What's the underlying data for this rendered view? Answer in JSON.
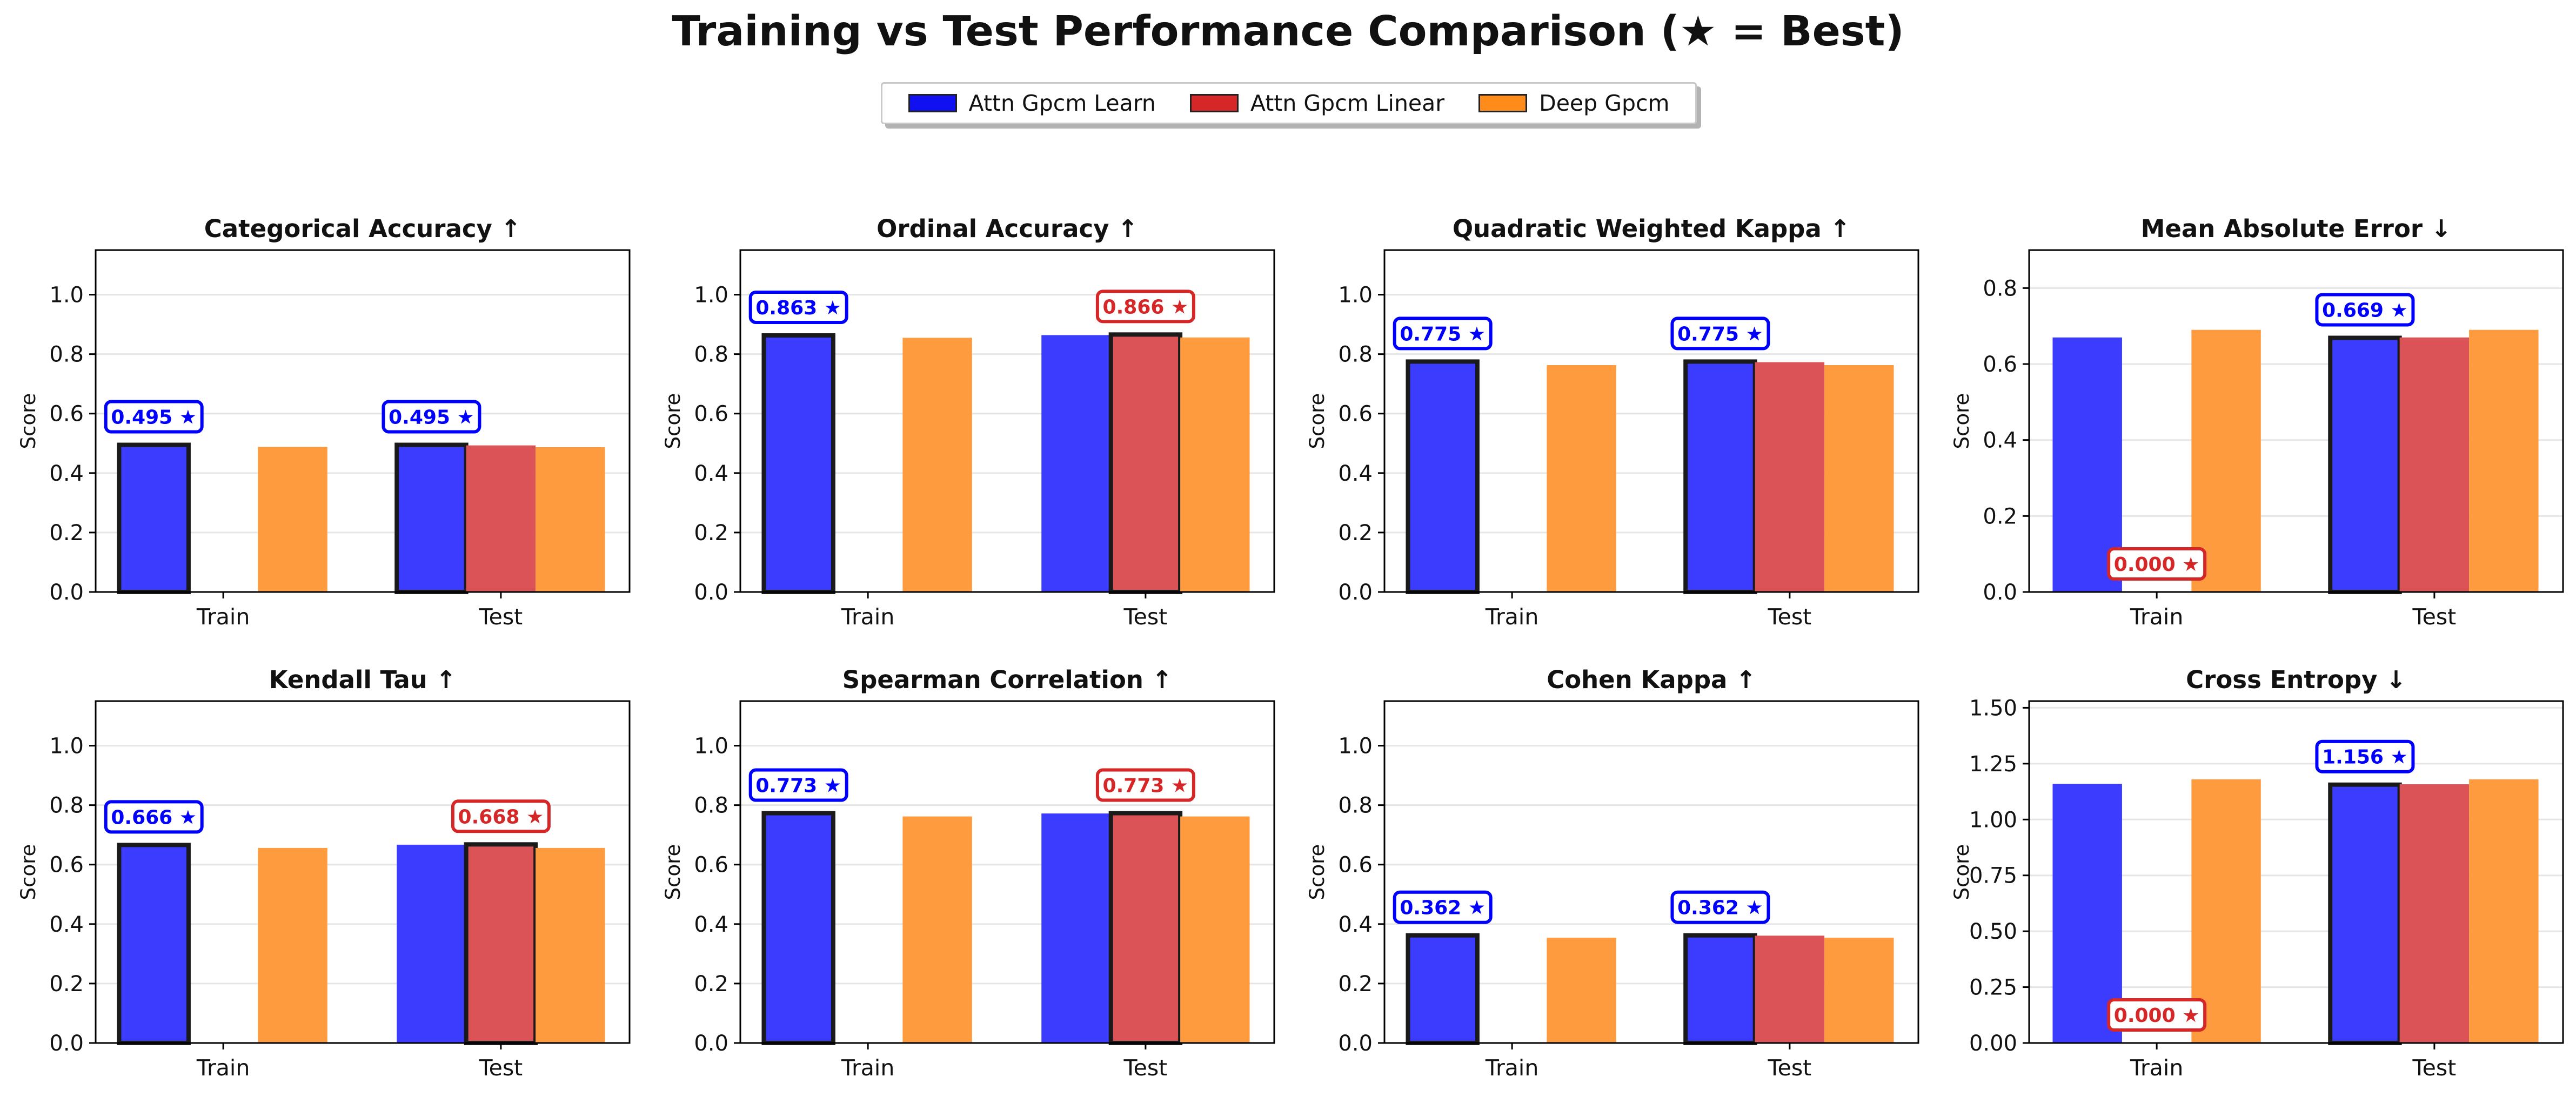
{
  "title": "Training vs Test Performance Comparison (★ = Best)",
  "legend": [
    {
      "label": "Attn Gpcm Learn",
      "color": "#0000ff"
    },
    {
      "label": "Attn Gpcm Linear",
      "color": "#d62728"
    },
    {
      "label": "Deep Gpcm",
      "color": "#ff7f0e"
    }
  ],
  "chart_data": [
    {
      "type": "bar",
      "title": "Categorical Accuracy ↑",
      "ylabel": "Score",
      "categories": [
        "Train",
        "Test"
      ],
      "ylim": [
        0,
        1.15
      ],
      "yticks": [
        "0.0",
        "0.2",
        "0.4",
        "0.6",
        "0.8",
        "1.0"
      ],
      "ytick_values": [
        0,
        0.2,
        0.4,
        0.6,
        0.8,
        1.0
      ],
      "series": [
        {
          "name": "Attn Gpcm Learn",
          "values": [
            0.495,
            0.495
          ]
        },
        {
          "name": "Attn Gpcm Linear",
          "values": [
            null,
            0.493
          ]
        },
        {
          "name": "Deep Gpcm",
          "values": [
            0.488,
            0.487
          ]
        }
      ],
      "best": [
        {
          "category": "Train",
          "series": 0,
          "label": "0.495 ★"
        },
        {
          "category": "Test",
          "series": 0,
          "label": "0.495 ★"
        }
      ]
    },
    {
      "type": "bar",
      "title": "Ordinal Accuracy ↑",
      "ylabel": "Score",
      "categories": [
        "Train",
        "Test"
      ],
      "ylim": [
        0,
        1.15
      ],
      "yticks": [
        "0.0",
        "0.2",
        "0.4",
        "0.6",
        "0.8",
        "1.0"
      ],
      "ytick_values": [
        0,
        0.2,
        0.4,
        0.6,
        0.8,
        1.0
      ],
      "series": [
        {
          "name": "Attn Gpcm Learn",
          "values": [
            0.863,
            0.864
          ]
        },
        {
          "name": "Attn Gpcm Linear",
          "values": [
            null,
            0.866
          ]
        },
        {
          "name": "Deep Gpcm",
          "values": [
            0.855,
            0.856
          ]
        }
      ],
      "best": [
        {
          "category": "Train",
          "series": 0,
          "label": "0.863 ★"
        },
        {
          "category": "Test",
          "series": 1,
          "label": "0.866 ★"
        }
      ]
    },
    {
      "type": "bar",
      "title": "Quadratic Weighted Kappa ↑",
      "ylabel": "Score",
      "categories": [
        "Train",
        "Test"
      ],
      "ylim": [
        0,
        1.15
      ],
      "yticks": [
        "0.0",
        "0.2",
        "0.4",
        "0.6",
        "0.8",
        "1.0"
      ],
      "ytick_values": [
        0,
        0.2,
        0.4,
        0.6,
        0.8,
        1.0
      ],
      "series": [
        {
          "name": "Attn Gpcm Learn",
          "values": [
            0.775,
            0.775
          ]
        },
        {
          "name": "Attn Gpcm Linear",
          "values": [
            null,
            0.773
          ]
        },
        {
          "name": "Deep Gpcm",
          "values": [
            0.763,
            0.763
          ]
        }
      ],
      "best": [
        {
          "category": "Train",
          "series": 0,
          "label": "0.775 ★"
        },
        {
          "category": "Test",
          "series": 0,
          "label": "0.775 ★"
        }
      ]
    },
    {
      "type": "bar",
      "title": "Mean Absolute Error ↓",
      "ylabel": "Score",
      "categories": [
        "Train",
        "Test"
      ],
      "ylim": [
        0,
        0.9
      ],
      "yticks": [
        "0.0",
        "0.2",
        "0.4",
        "0.6",
        "0.8"
      ],
      "ytick_values": [
        0,
        0.2,
        0.4,
        0.6,
        0.8
      ],
      "series": [
        {
          "name": "Attn Gpcm Learn",
          "values": [
            0.67,
            0.669
          ]
        },
        {
          "name": "Attn Gpcm Linear",
          "values": [
            0.0,
            0.67
          ]
        },
        {
          "name": "Deep Gpcm",
          "values": [
            0.69,
            0.69
          ]
        }
      ],
      "best": [
        {
          "category": "Train",
          "series": 1,
          "label": "0.000 ★"
        },
        {
          "category": "Test",
          "series": 0,
          "label": "0.669 ★"
        }
      ]
    },
    {
      "type": "bar",
      "title": "Kendall Tau ↑",
      "ylabel": "Score",
      "categories": [
        "Train",
        "Test"
      ],
      "ylim": [
        0,
        1.15
      ],
      "yticks": [
        "0.0",
        "0.2",
        "0.4",
        "0.6",
        "0.8",
        "1.0"
      ],
      "ytick_values": [
        0,
        0.2,
        0.4,
        0.6,
        0.8,
        1.0
      ],
      "series": [
        {
          "name": "Attn Gpcm Learn",
          "values": [
            0.666,
            0.667
          ]
        },
        {
          "name": "Attn Gpcm Linear",
          "values": [
            null,
            0.668
          ]
        },
        {
          "name": "Deep Gpcm",
          "values": [
            0.656,
            0.656
          ]
        }
      ],
      "best": [
        {
          "category": "Train",
          "series": 0,
          "label": "0.666 ★"
        },
        {
          "category": "Test",
          "series": 1,
          "label": "0.668 ★"
        }
      ]
    },
    {
      "type": "bar",
      "title": "Spearman Correlation ↑",
      "ylabel": "Score",
      "categories": [
        "Train",
        "Test"
      ],
      "ylim": [
        0,
        1.15
      ],
      "yticks": [
        "0.0",
        "0.2",
        "0.4",
        "0.6",
        "0.8",
        "1.0"
      ],
      "ytick_values": [
        0,
        0.2,
        0.4,
        0.6,
        0.8,
        1.0
      ],
      "series": [
        {
          "name": "Attn Gpcm Learn",
          "values": [
            0.773,
            0.772
          ]
        },
        {
          "name": "Attn Gpcm Linear",
          "values": [
            null,
            0.773
          ]
        },
        {
          "name": "Deep Gpcm",
          "values": [
            0.762,
            0.762
          ]
        }
      ],
      "best": [
        {
          "category": "Train",
          "series": 0,
          "label": "0.773 ★"
        },
        {
          "category": "Test",
          "series": 1,
          "label": "0.773 ★"
        }
      ]
    },
    {
      "type": "bar",
      "title": "Cohen Kappa ↑",
      "ylabel": "Score",
      "categories": [
        "Train",
        "Test"
      ],
      "ylim": [
        0,
        1.15
      ],
      "yticks": [
        "0.0",
        "0.2",
        "0.4",
        "0.6",
        "0.8",
        "1.0"
      ],
      "ytick_values": [
        0,
        0.2,
        0.4,
        0.6,
        0.8,
        1.0
      ],
      "series": [
        {
          "name": "Attn Gpcm Learn",
          "values": [
            0.362,
            0.362
          ]
        },
        {
          "name": "Attn Gpcm Linear",
          "values": [
            null,
            0.361
          ]
        },
        {
          "name": "Deep Gpcm",
          "values": [
            0.354,
            0.354
          ]
        }
      ],
      "best": [
        {
          "category": "Train",
          "series": 0,
          "label": "0.362 ★"
        },
        {
          "category": "Test",
          "series": 0,
          "label": "0.362 ★"
        }
      ]
    },
    {
      "type": "bar",
      "title": "Cross Entropy ↓",
      "ylabel": "Score",
      "categories": [
        "Train",
        "Test"
      ],
      "ylim": [
        0,
        1.53
      ],
      "yticks": [
        "0.00",
        "0.25",
        "0.50",
        "0.75",
        "1.00",
        "1.25",
        "1.50"
      ],
      "ytick_values": [
        0,
        0.25,
        0.5,
        0.75,
        1.0,
        1.25,
        1.5
      ],
      "series": [
        {
          "name": "Attn Gpcm Learn",
          "values": [
            1.16,
            1.156
          ]
        },
        {
          "name": "Attn Gpcm Linear",
          "values": [
            0.0,
            1.158
          ]
        },
        {
          "name": "Deep Gpcm",
          "values": [
            1.18,
            1.18
          ]
        }
      ],
      "best": [
        {
          "category": "Train",
          "series": 1,
          "label": "0.000 ★"
        },
        {
          "category": "Test",
          "series": 0,
          "label": "1.156 ★"
        }
      ]
    }
  ]
}
